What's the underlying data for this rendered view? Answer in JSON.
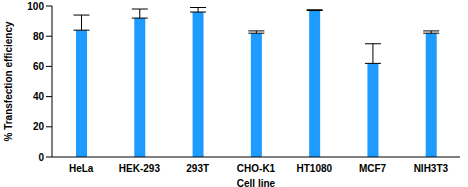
{
  "chart_data": {
    "type": "bar",
    "x_label": "Cell line",
    "y_label": "% Transfection efficiency",
    "categories": [
      "HeLa",
      "HEK-293",
      "293T",
      "CHO-K1",
      "HT1080",
      "MCF7",
      "NIH3T3"
    ],
    "values": [
      84,
      92,
      96,
      82,
      97,
      62,
      82
    ],
    "errors": [
      10,
      6,
      3,
      1.5,
      0.5,
      13,
      1.5
    ],
    "color": "#1e9bff",
    "ylim": [
      0,
      100
    ],
    "yticks": [
      0,
      20,
      40,
      60,
      80,
      100
    ],
    "grid": false
  }
}
